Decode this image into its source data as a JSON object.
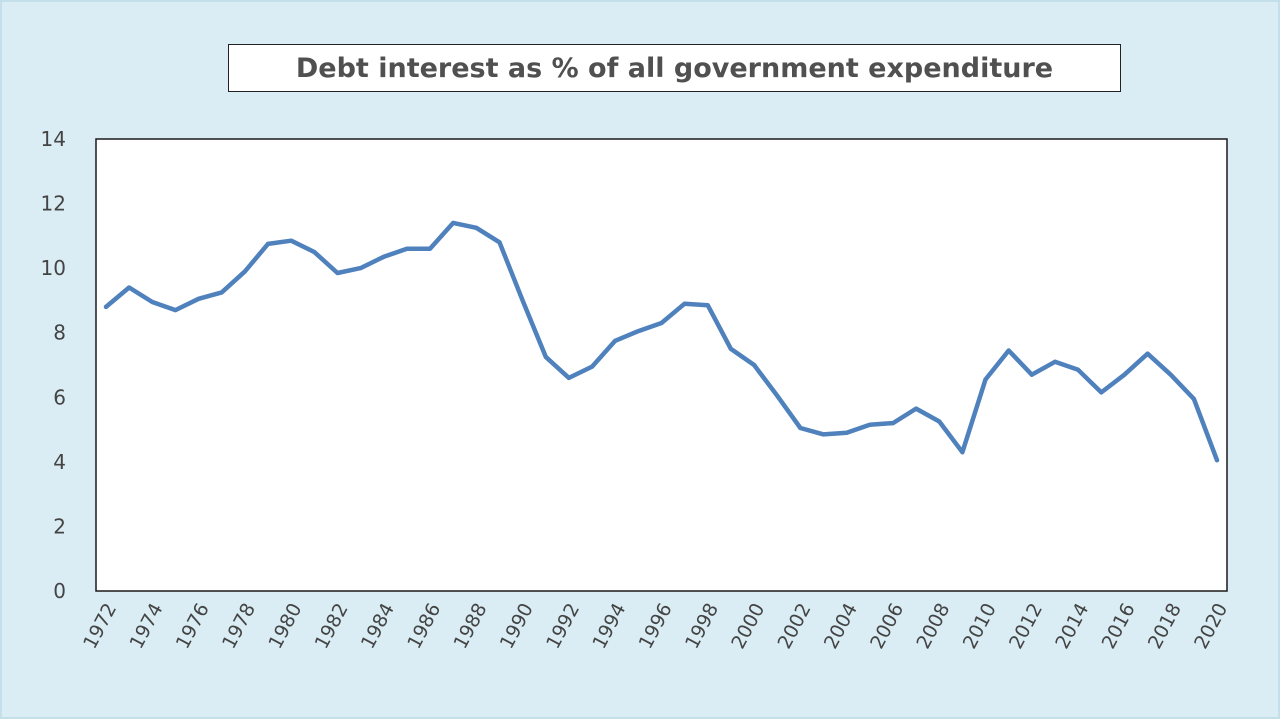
{
  "chart_data": {
    "type": "line",
    "title": "Debt interest as % of all government expenditure",
    "xlabel": "",
    "ylabel": "",
    "ylim": [
      0,
      14
    ],
    "yticks": [
      0,
      2,
      4,
      6,
      8,
      10,
      12,
      14
    ],
    "xticks": [
      "1972",
      "1974",
      "1976",
      "1978",
      "1980",
      "1982",
      "1984",
      "1986",
      "1988",
      "1990",
      "1992",
      "1994",
      "1996",
      "1998",
      "2000",
      "2002",
      "2004",
      "2006",
      "2008",
      "2010",
      "2012",
      "2014",
      "2016",
      "2018",
      "2020"
    ],
    "grid": false,
    "legend": "none",
    "series_color": "#4f81bd",
    "x": [
      1972,
      1973,
      1974,
      1975,
      1976,
      1977,
      1978,
      1979,
      1980,
      1981,
      1982,
      1983,
      1984,
      1985,
      1986,
      1987,
      1988,
      1989,
      1990,
      1991,
      1992,
      1993,
      1994,
      1995,
      1996,
      1997,
      1998,
      1999,
      2000,
      2001,
      2002,
      2003,
      2004,
      2005,
      2006,
      2007,
      2008,
      2009,
      2010,
      2011,
      2012,
      2013,
      2014,
      2015,
      2016,
      2017,
      2018,
      2019,
      2020
    ],
    "series": [
      {
        "values": [
          8.8,
          9.4,
          8.95,
          8.7,
          9.05,
          9.25,
          9.9,
          10.75,
          10.85,
          10.5,
          9.85,
          10.0,
          10.35,
          10.6,
          10.6,
          11.4,
          11.25,
          10.8,
          9.0,
          7.25,
          6.6,
          6.95,
          7.75,
          8.05,
          8.3,
          8.9,
          8.85,
          7.5,
          7.0,
          6.05,
          5.05,
          4.85,
          4.9,
          5.15,
          5.2,
          5.65,
          5.25,
          4.3,
          6.55,
          7.45,
          6.7,
          7.1,
          6.85,
          6.15,
          6.7,
          7.35,
          6.7,
          5.95,
          4.05
        ]
      }
    ]
  }
}
